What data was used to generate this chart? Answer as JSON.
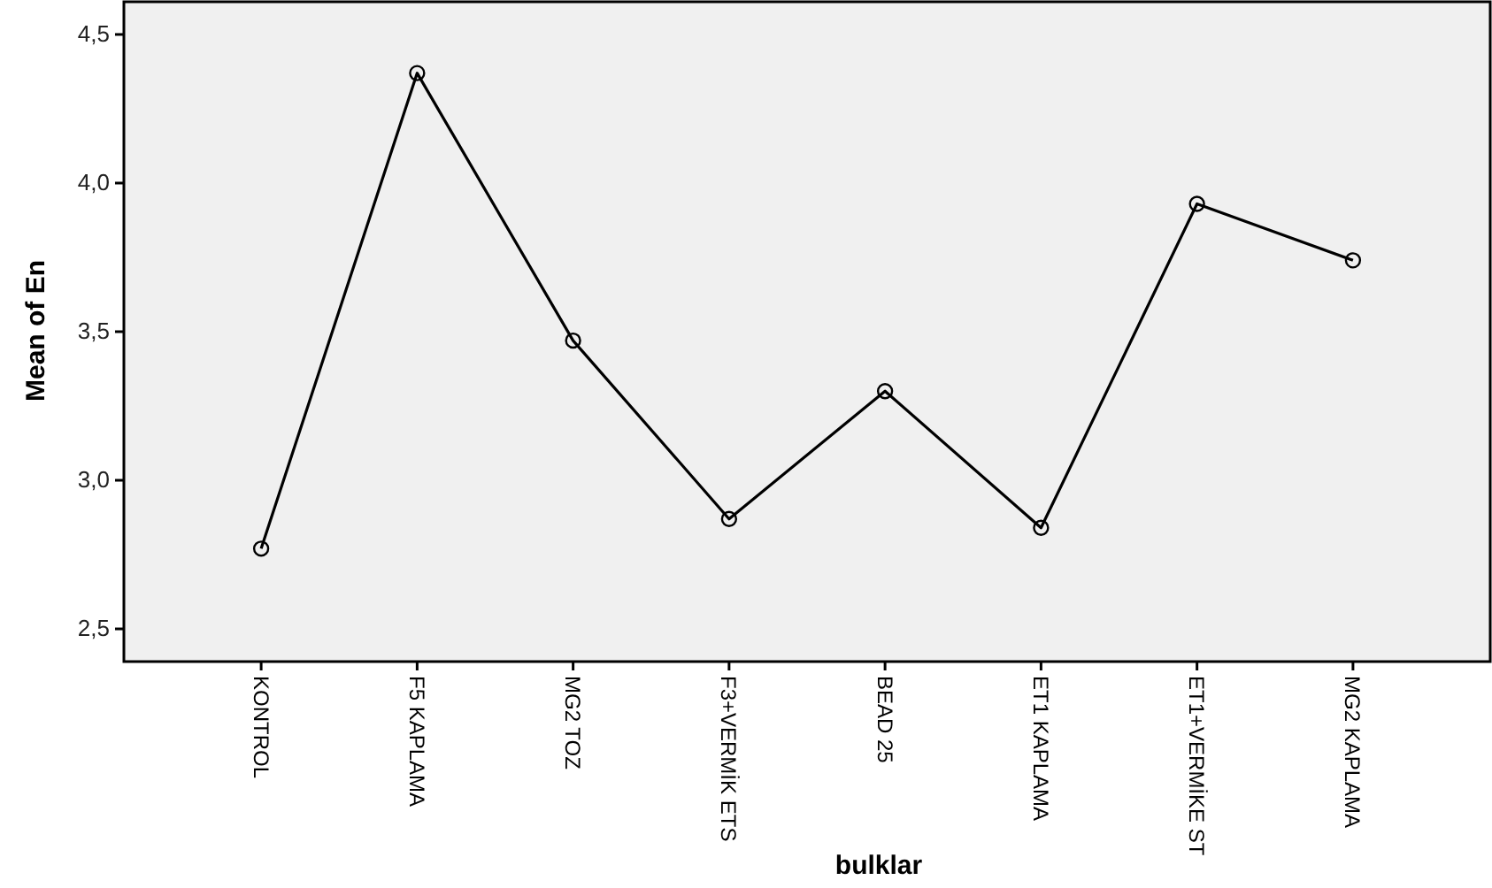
{
  "chart_data": {
    "type": "line",
    "xlabel": "bulklar",
    "ylabel": "Mean of En",
    "categories": [
      "KONTROL",
      "F5 KAPLAMA",
      "MG2 TOZ",
      "F3+VERMİK ETS",
      "BEAD 25",
      "ET1 KAPLAMA",
      "ET1+VERMİKE ST",
      "MG2 KAPLAMA"
    ],
    "series": [
      {
        "color": "#000000",
        "values": [
          2.77,
          4.37,
          3.47,
          2.87,
          3.3,
          2.84,
          3.93,
          3.74
        ]
      }
    ],
    "ylim": [
      2.39,
      4.61
    ],
    "yticks": [
      {
        "value": 2.5,
        "label": "2,5"
      },
      {
        "value": 3.0,
        "label": "3,0"
      },
      {
        "value": 3.5,
        "label": "3,5"
      },
      {
        "value": 4.0,
        "label": "4,0"
      },
      {
        "value": 4.5,
        "label": "4,5"
      }
    ],
    "grid": false,
    "marker": "circle",
    "line_style": "solid"
  }
}
